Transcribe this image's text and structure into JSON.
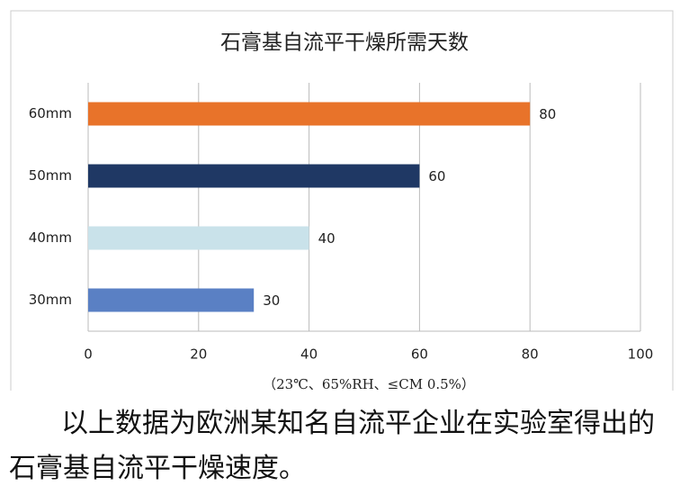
{
  "chart_data": {
    "type": "hbar",
    "title": "石膏基自流平干燥所需天数",
    "subtitle": "（23℃、65%RH、≤CM 0.5%）",
    "categories": [
      "60mm",
      "50mm",
      "40mm",
      "30mm"
    ],
    "values": [
      80,
      60,
      40,
      30
    ],
    "colors": [
      "#e8732a",
      "#1f3864",
      "#c9e2ea",
      "#5a80c4"
    ],
    "xlim": [
      0,
      100
    ],
    "xticks": [
      0,
      20,
      40,
      60,
      80,
      100
    ],
    "grid": true
  },
  "caption": "以上数据为欧洲某知名自流平企业在实验室得出的石膏基自流平干燥速度。"
}
